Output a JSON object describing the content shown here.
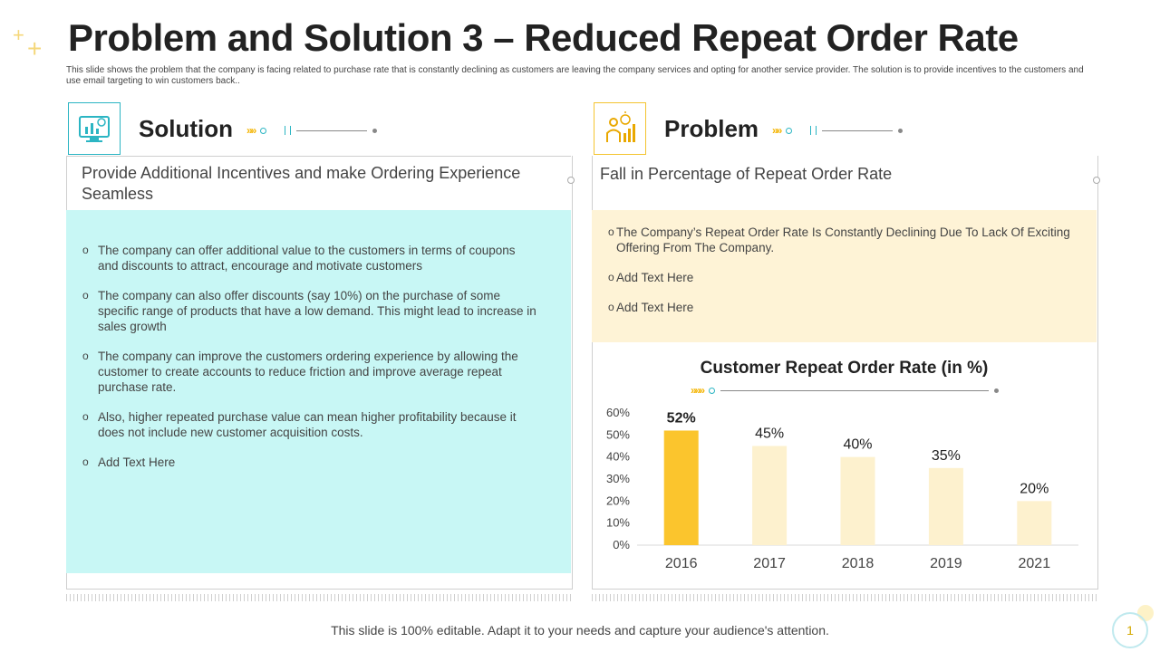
{
  "header": {
    "title": "Problem and Solution 3 – Reduced Repeat Order Rate",
    "subtitle": "This slide shows the problem that the company is facing related to purchase rate that is constantly declining as customers are leaving the company services and opting for another service provider. The solution is to provide incentives to the customers and use email targeting to win customers back.."
  },
  "solution": {
    "title": "Solution",
    "heading": "Provide Additional Incentives and make Ordering Experience Seamless",
    "bullets": [
      "The company can offer additional value to the customers in terms of coupons and discounts to attract, encourage and motivate customers",
      "The company can also offer discounts (say 10%) on the purchase of some specific range of products that have a low demand. This might lead to increase in sales growth",
      "The company can improve the customers ordering experience by allowing the customer to create accounts to reduce friction and improve average repeat purchase rate.",
      "Also, higher repeated purchase value can mean higher profitability because it does not include new customer acquisition costs.",
      "Add Text Here"
    ],
    "panel_color": "#c8f7f5"
  },
  "problem": {
    "title": "Problem",
    "heading": "Fall in Percentage of Repeat Order Rate",
    "bullets": [
      "The Company’s Repeat Order Rate Is Constantly Declining Due To Lack Of Exciting Offering From The Company.",
      "Add Text Here",
      "Add Text Here"
    ],
    "panel_color": "#fef3d6"
  },
  "chart_data": {
    "type": "bar",
    "title": "Customer Repeat Order Rate (in %)",
    "categories": [
      "2016",
      "2017",
      "2018",
      "2019",
      "2021"
    ],
    "values": [
      52,
      45,
      40,
      35,
      20
    ],
    "data_labels": [
      "52%",
      "45%",
      "40%",
      "35%",
      "20%"
    ],
    "highlight_index": 0,
    "ylim": [
      0,
      60
    ],
    "yticks": [
      "0%",
      "10%",
      "20%",
      "30%",
      "40%",
      "50%",
      "60%"
    ],
    "colors": {
      "highlight": "#fbc52d",
      "normal": "#fdf1ce"
    },
    "grid": false
  },
  "footer": {
    "text": "This slide is 100% editable. Adapt it to your needs and capture your audience's attention.",
    "page_number": "1"
  },
  "colors": {
    "accent_teal": "#2bb5c3",
    "accent_yellow": "#f4b400"
  }
}
